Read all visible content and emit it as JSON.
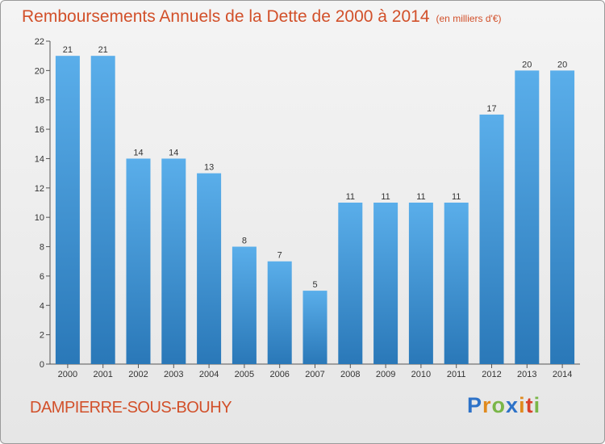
{
  "header": {
    "title": "Remboursements Annuels de la Dette de 2000 à 2014",
    "subtitle": "(en milliers d'€)"
  },
  "footer": {
    "commune": "DAMPIERRE-SOUS-BOUHY",
    "logo": "Proxiti"
  },
  "colors": {
    "title": "#d2502a",
    "bar_light": "#5aaeea",
    "bar_dark": "#2a78b8"
  },
  "chart_data": {
    "type": "bar",
    "title": "Remboursements Annuels de la Dette de 2000 à 2014",
    "categories": [
      "2000",
      "2001",
      "2002",
      "2003",
      "2004",
      "2005",
      "2006",
      "2007",
      "2008",
      "2009",
      "2010",
      "2011",
      "2012",
      "2013",
      "2014"
    ],
    "values": [
      21,
      21,
      14,
      14,
      13,
      8,
      7,
      5,
      11,
      11,
      11,
      11,
      17,
      20,
      20
    ],
    "xlabel": "",
    "ylabel": "",
    "ylim": [
      0,
      22
    ],
    "yticks": [
      0,
      2,
      4,
      6,
      8,
      10,
      12,
      14,
      16,
      18,
      20,
      22
    ],
    "grid": false,
    "data_labels": true
  }
}
